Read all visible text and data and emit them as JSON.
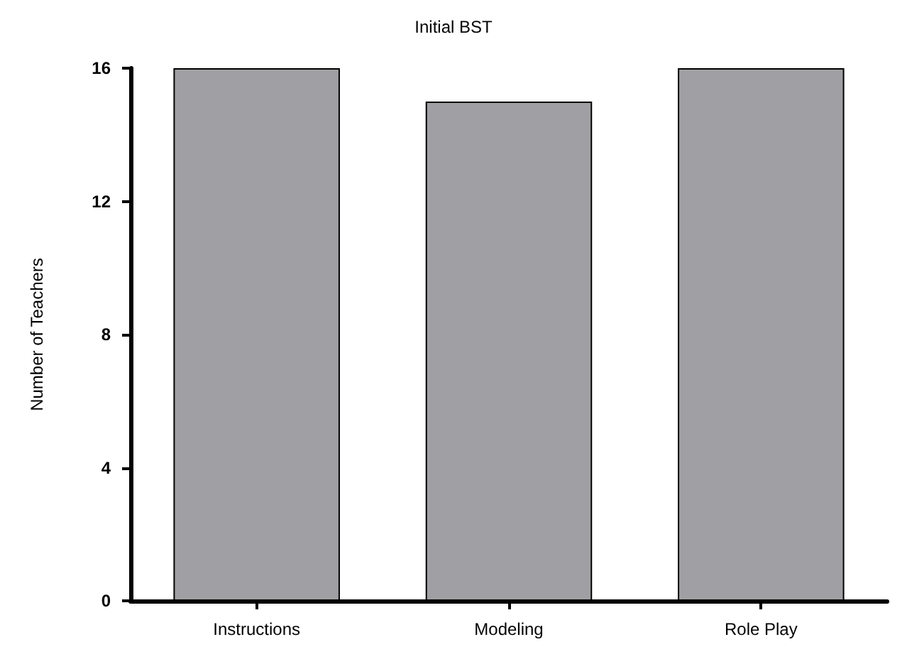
{
  "chart_data": {
    "type": "bar",
    "title": "Initial BST",
    "ylabel": "Number of Teachers",
    "categories": [
      "Instructions",
      "Modeling",
      "Role Play"
    ],
    "values": [
      16,
      15,
      16
    ],
    "color": "#a0a0a4",
    "ylim": [
      0,
      16
    ],
    "yticks": [
      0,
      4,
      8,
      12,
      16
    ],
    "grid": false
  }
}
